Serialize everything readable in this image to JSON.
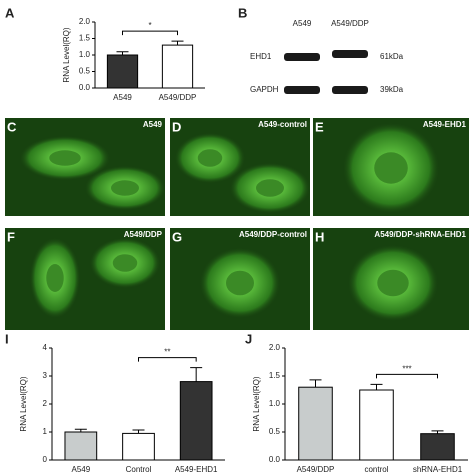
{
  "chart_data": [
    {
      "type": "bar",
      "panel": "A",
      "y_label": "RNA Level(RQ)",
      "categories": [
        "A549",
        "A549/DDP"
      ],
      "values": [
        1.0,
        1.3
      ],
      "errors": [
        0.1,
        0.12
      ],
      "colors": [
        "#333333",
        "#ffffff"
      ],
      "ylim": [
        0,
        2
      ],
      "yticks": [
        {
          "value": 0,
          "label": "0.0"
        },
        {
          "value": 0.5,
          "label": "0.5"
        },
        {
          "value": 1,
          "label": "1.0"
        },
        {
          "value": 1.5,
          "label": "1.5"
        },
        {
          "value": 2,
          "label": "2.0"
        }
      ],
      "annotation": "*"
    },
    {
      "type": "bar",
      "panel": "I",
      "y_label": "RNA Level(RQ)",
      "categories": [
        "A549",
        "Control",
        "A549-EHD1"
      ],
      "values": [
        1.0,
        0.95,
        2.8
      ],
      "errors": [
        0.1,
        0.12,
        0.5
      ],
      "colors": [
        "#c8cccc",
        "#ffffff",
        "#333333"
      ],
      "ylim": [
        0,
        4
      ],
      "yticks": [
        0,
        1,
        2,
        3,
        4
      ],
      "annotation": "**"
    },
    {
      "type": "bar",
      "panel": "J",
      "y_label": "RNA Level(RQ)",
      "categories": [
        "A549/DDP",
        "control",
        "shRNA-EHD1"
      ],
      "values": [
        1.3,
        1.25,
        0.47
      ],
      "errors": [
        0.13,
        0.1,
        0.05
      ],
      "colors": [
        "#c8cccc",
        "#ffffff",
        "#333333"
      ],
      "ylim": [
        0,
        2
      ],
      "yticks": [
        {
          "value": 0,
          "label": "0.0"
        },
        {
          "value": 0.5,
          "label": "0.5"
        },
        {
          "value": 1,
          "label": "1.0"
        },
        {
          "value": 1.5,
          "label": "1.5"
        },
        {
          "value": 2,
          "label": "2.0"
        }
      ],
      "annotation": "***"
    }
  ],
  "blot": {
    "panel": "B",
    "columns": [
      "A549",
      "A549/DDP"
    ],
    "rows": [
      {
        "name": "EHD1",
        "size": "61kDa"
      },
      {
        "name": "GAPDH",
        "size": "39kDa"
      }
    ]
  },
  "images": [
    {
      "panel": "C",
      "label": "A549"
    },
    {
      "panel": "D",
      "label": "A549-control"
    },
    {
      "panel": "E",
      "label": "A549-EHD1"
    },
    {
      "panel": "F",
      "label": "A549/DDP"
    },
    {
      "panel": "G",
      "label": "A549/DDP-control"
    },
    {
      "panel": "H",
      "label": "A549/DDP-shRNA-EHD1"
    }
  ]
}
